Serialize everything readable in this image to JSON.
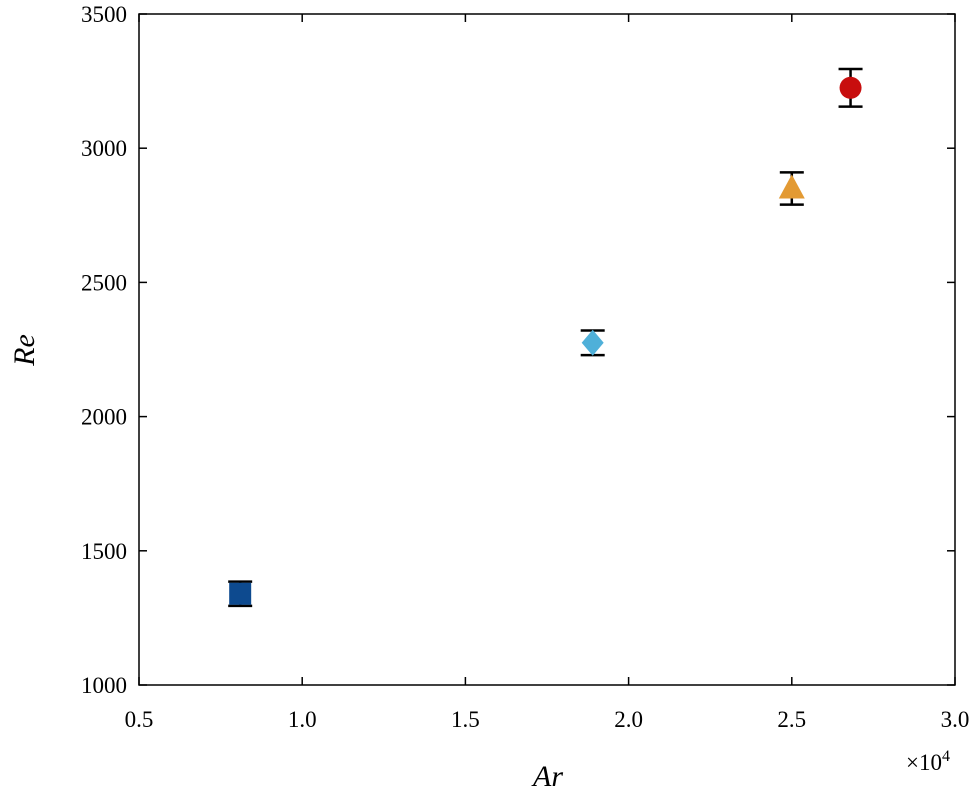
{
  "chart_data": {
    "type": "scatter",
    "xlabel": "Ar",
    "ylabel": "Re",
    "x_scale_label": {
      "base": "×10",
      "exponent": "4"
    },
    "xlim": [
      0.5,
      3.0
    ],
    "xticks": [
      0.5,
      {
        "value": 1,
        "label": "1.0"
      },
      1.5,
      {
        "value": 2,
        "label": "2.0"
      },
      2.5,
      {
        "value": 3,
        "label": "3.0"
      }
    ],
    "ylim": [
      1000,
      3500
    ],
    "yticks": [
      1000,
      1500,
      2000,
      2500,
      3000,
      3500
    ],
    "series": [
      {
        "marker": "square",
        "color": "#0d4a8f",
        "x": [
          0.81
        ],
        "values": [
          1340
        ],
        "errors": [
          45
        ]
      },
      {
        "marker": "diamond",
        "color": "#4fb0d9",
        "x": [
          1.89
        ],
        "values": [
          2275
        ],
        "errors": [
          46
        ]
      },
      {
        "marker": "triangle",
        "color": "#e39a33",
        "x": [
          2.5
        ],
        "values": [
          2850
        ],
        "errors": [
          60
        ]
      },
      {
        "marker": "circle",
        "color": "#c80e0e",
        "x": [
          2.68
        ],
        "values": [
          3225
        ],
        "errors": [
          70
        ]
      }
    ]
  }
}
